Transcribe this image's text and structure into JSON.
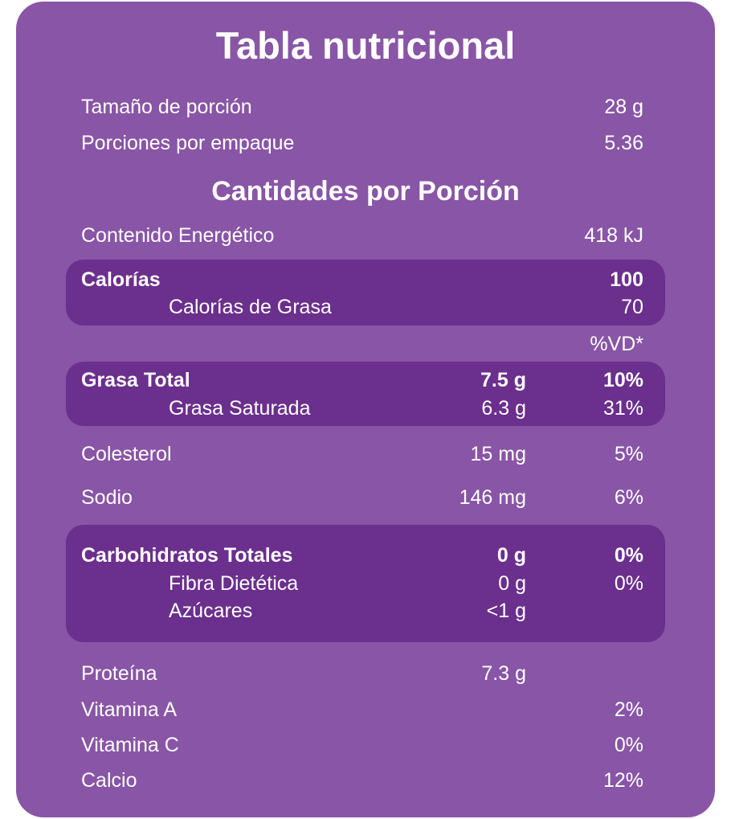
{
  "title": "Tabla nutricional",
  "serving": [
    {
      "label": "Tamaño de porción",
      "value": "28 g"
    },
    {
      "label": "Porciones por empaque",
      "value": "5.36"
    }
  ],
  "section_title": "Cantidades por Porción",
  "energy": {
    "label": "Contenido Energético",
    "value": "418 kJ"
  },
  "calories": [
    {
      "label": "Calorías",
      "value": "100"
    },
    {
      "label": "Calorías de Grasa",
      "value": "70"
    }
  ],
  "dv_header": "%VD*",
  "fat": [
    {
      "label": "Grasa Total",
      "amount": "7.5 g",
      "dv": "10%"
    },
    {
      "label": "Grasa Saturada",
      "amount": "6.3 g",
      "dv": "31%"
    }
  ],
  "others": [
    {
      "label": "Colesterol",
      "amount": "15 mg",
      "dv": "5%"
    },
    {
      "label": "Sodio",
      "amount": "146 mg",
      "dv": "6%"
    }
  ],
  "carbs": [
    {
      "label": "Carbohidratos Totales",
      "amount": "0 g",
      "dv": "0%"
    },
    {
      "label": "Fibra Dietética",
      "amount": "0 g",
      "dv": "0%"
    },
    {
      "label": "Azúcares",
      "amount": "<1 g"
    }
  ],
  "protein": {
    "label": "Proteína",
    "amount": "7.3 g"
  },
  "vitamins": [
    {
      "label": "Vitamina A",
      "dv": "2%"
    },
    {
      "label": "Vitamina C",
      "dv": "0%"
    },
    {
      "label": "Calcio",
      "dv": "12%"
    }
  ]
}
